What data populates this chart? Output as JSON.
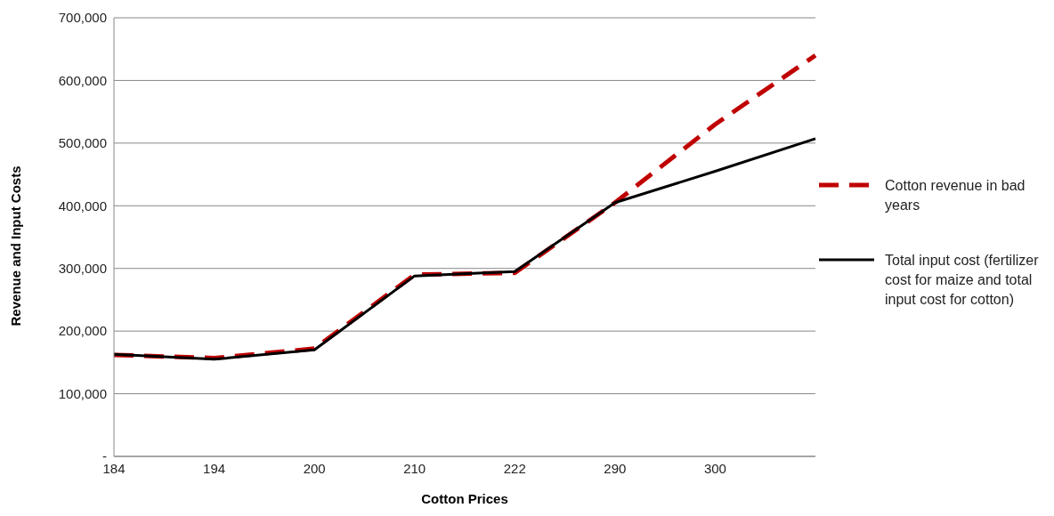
{
  "chart_data": {
    "type": "line",
    "xlabel": "Cotton Prices",
    "ylabel": "Revenue and Input Costs",
    "categories": [
      "184",
      "194",
      "200",
      "210",
      "222",
      "290",
      "300",
      null
    ],
    "series": [
      {
        "name": "Cotton revenue in bad years",
        "color": "#c00000",
        "line_style": "dashed",
        "values": [
          162000,
          157000,
          172000,
          290000,
          293000,
          405000,
          530000,
          640000
        ]
      },
      {
        "name": "Total input cost (fertilizer cost for maize and total input cost for cotton)",
        "color": "#000000",
        "line_style": "solid",
        "values": [
          163000,
          155000,
          170000,
          288000,
          295000,
          405000,
          455000,
          507000
        ]
      }
    ],
    "ylim": [
      0,
      700000
    ],
    "yticks": [
      {
        "value": 0,
        "label": "-"
      },
      {
        "value": 100000,
        "label": "100,000"
      },
      {
        "value": 200000,
        "label": "200,000"
      },
      {
        "value": 300000,
        "label": "300,000"
      },
      {
        "value": 400000,
        "label": "400,000"
      },
      {
        "value": 500000,
        "label": "500,000"
      },
      {
        "value": 600000,
        "label": "600,000"
      },
      {
        "value": 700000,
        "label": "700,000"
      }
    ],
    "grid": "y",
    "legend": "right",
    "marker": "none"
  }
}
